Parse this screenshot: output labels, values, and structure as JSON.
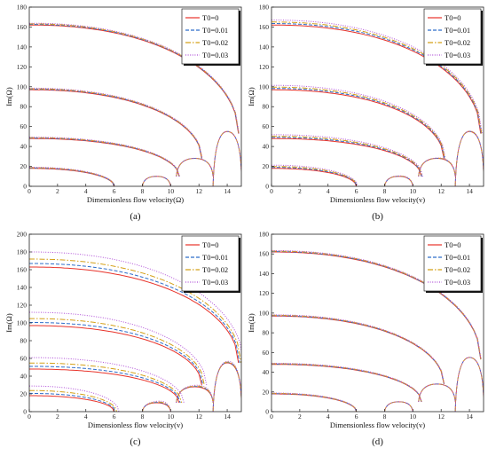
{
  "chart_data": [
    {
      "type": "line",
      "panel_label": "(a)",
      "xlabel": "Dimensionless flow velocity(Ω)",
      "ylabel": "Im(Ω)",
      "xlim": [
        0,
        15
      ],
      "ylim": [
        0,
        180
      ],
      "xticks": [
        "0",
        "2",
        "4",
        "6",
        "8",
        "10",
        "12",
        "14"
      ],
      "yticks": [
        "0",
        "20",
        "40",
        "60",
        "80",
        "100",
        "120",
        "140",
        "160",
        "180"
      ],
      "legend_position": "top-right",
      "series": [
        {
          "name": "T0=0",
          "color": "#e8332a",
          "dash": "solid"
        },
        {
          "name": "T0=0.01",
          "color": "#2f6ec9",
          "dash": "dashed"
        },
        {
          "name": "T0=0.02",
          "color": "#d4a017",
          "dash": "dashdot"
        },
        {
          "name": "T0=0.03",
          "color": "#b04fd8",
          "dash": "dotted"
        }
      ],
      "branches": [
        {
          "y0": 162,
          "x_end": 14.8,
          "y_end": 53
        },
        {
          "y0": 97,
          "x_end": 12.2,
          "y_end": 28
        },
        {
          "y0": 48,
          "x_end": 10.6,
          "y_end": 10
        },
        {
          "y0": 18,
          "x_end": 6,
          "y_end": 0
        }
      ],
      "shift": [
        0,
        0.6,
        1.2,
        1.8
      ]
    },
    {
      "type": "line",
      "panel_label": "(b)",
      "xlabel": "Dimensionless flow velocity(v)",
      "ylabel": "Im(Ω)",
      "xlim": [
        0,
        15
      ],
      "ylim": [
        0,
        180
      ],
      "xticks": [
        "0",
        "2",
        "4",
        "6",
        "8",
        "10",
        "12",
        "14"
      ],
      "yticks": [
        "0",
        "20",
        "40",
        "60",
        "80",
        "100",
        "120",
        "140",
        "160",
        "180"
      ],
      "legend_position": "top-right",
      "series": [
        {
          "name": "T0=0",
          "color": "#e8332a",
          "dash": "solid"
        },
        {
          "name": "T0=0.01",
          "color": "#2f6ec9",
          "dash": "dashed"
        },
        {
          "name": "T0=0.02",
          "color": "#d4a017",
          "dash": "dashdot"
        },
        {
          "name": "T0=0.03",
          "color": "#b04fd8",
          "dash": "dotted"
        }
      ],
      "branches": [
        {
          "y0": 162,
          "x_end": 14.8,
          "y_end": 53
        },
        {
          "y0": 97,
          "x_end": 12.2,
          "y_end": 28
        },
        {
          "y0": 48,
          "x_end": 10.6,
          "y_end": 10
        },
        {
          "y0": 18,
          "x_end": 6,
          "y_end": 0
        }
      ],
      "shift": [
        0,
        1.5,
        3,
        5
      ]
    },
    {
      "type": "line",
      "panel_label": "(c)",
      "xlabel": "Dimensionless flow velocity(v)",
      "ylabel": "Im(Ω)",
      "xlim": [
        0,
        15
      ],
      "ylim": [
        0,
        200
      ],
      "xticks": [
        "0",
        "2",
        "4",
        "6",
        "8",
        "10",
        "12",
        "14"
      ],
      "yticks": [
        "0",
        "20",
        "40",
        "60",
        "80",
        "100",
        "120",
        "140",
        "160",
        "180",
        "200"
      ],
      "legend_position": "top-right",
      "series": [
        {
          "name": "T0=0",
          "color": "#e8332a",
          "dash": "solid"
        },
        {
          "name": "T0=0.01",
          "color": "#2f6ec9",
          "dash": "dashed"
        },
        {
          "name": "T0=0.02",
          "color": "#d4a017",
          "dash": "dashdot"
        },
        {
          "name": "T0=0.03",
          "color": "#b04fd8",
          "dash": "dotted"
        }
      ],
      "branches": [
        {
          "y0": 163,
          "x_end": 14.8,
          "y_end": 55
        },
        {
          "y0": 97,
          "x_end": 12.2,
          "y_end": 30
        },
        {
          "y0": 48,
          "x_end": 10.6,
          "y_end": 10
        },
        {
          "y0": 18,
          "x_end": 6,
          "y_end": 0
        }
      ],
      "shift": [
        0,
        4,
        9,
        17
      ]
    },
    {
      "type": "line",
      "panel_label": "(d)",
      "xlabel": "Dimensionless flow velocity(v)",
      "ylabel": "Im(Ω)",
      "xlim": [
        0,
        15
      ],
      "ylim": [
        0,
        180
      ],
      "xticks": [
        "0",
        "2",
        "4",
        "6",
        "8",
        "10",
        "12",
        "14"
      ],
      "yticks": [
        "0",
        "20",
        "40",
        "60",
        "80",
        "100",
        "120",
        "140",
        "160",
        "180"
      ],
      "legend_position": "top-right",
      "series": [
        {
          "name": "T0=0",
          "color": "#e8332a",
          "dash": "solid"
        },
        {
          "name": "T0=0.01",
          "color": "#2f6ec9",
          "dash": "dashed"
        },
        {
          "name": "T0=0.02",
          "color": "#d4a017",
          "dash": "dashdot"
        },
        {
          "name": "T0=0.03",
          "color": "#b04fd8",
          "dash": "dotted"
        }
      ],
      "branches": [
        {
          "y0": 162,
          "x_end": 14.8,
          "y_end": 53
        },
        {
          "y0": 97,
          "x_end": 12.2,
          "y_end": 28
        },
        {
          "y0": 48,
          "x_end": 10.6,
          "y_end": 10
        },
        {
          "y0": 18,
          "x_end": 6,
          "y_end": 0
        }
      ],
      "shift": [
        0,
        0.4,
        0.9,
        1.4
      ]
    }
  ]
}
